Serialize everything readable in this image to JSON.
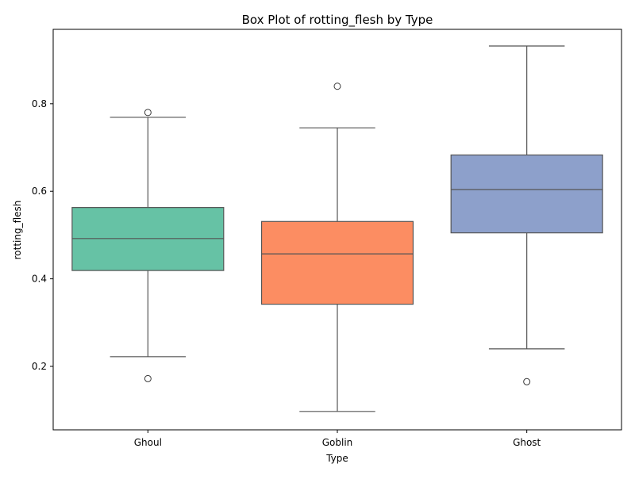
{
  "chart_data": {
    "type": "box",
    "title": "Box Plot of rotting_flesh by Type",
    "xlabel": "Type",
    "ylabel": "rotting_flesh",
    "ylim": [
      0.055,
      0.97
    ],
    "yticks": [
      0.2,
      0.4,
      0.6,
      0.8
    ],
    "ytick_labels": [
      "0.2",
      "0.4",
      "0.6",
      "0.8"
    ],
    "grid": false,
    "categories": [
      "Ghoul",
      "Goblin",
      "Ghost"
    ],
    "boxes": [
      {
        "category": "Ghoul",
        "color": "#66c2a5",
        "whisker_low": 0.222,
        "q1": 0.419,
        "median": 0.492,
        "q3": 0.563,
        "whisker_high": 0.769,
        "outliers": [
          0.78,
          0.172
        ]
      },
      {
        "category": "Goblin",
        "color": "#fc8d62",
        "whisker_low": 0.097,
        "q1": 0.342,
        "median": 0.457,
        "q3": 0.531,
        "whisker_high": 0.745,
        "outliers": [
          0.84
        ]
      },
      {
        "category": "Ghost",
        "color": "#8da0cb",
        "whisker_low": 0.24,
        "q1": 0.505,
        "median": 0.604,
        "q3": 0.683,
        "whisker_high": 0.932,
        "outliers": [
          0.165
        ]
      }
    ]
  }
}
